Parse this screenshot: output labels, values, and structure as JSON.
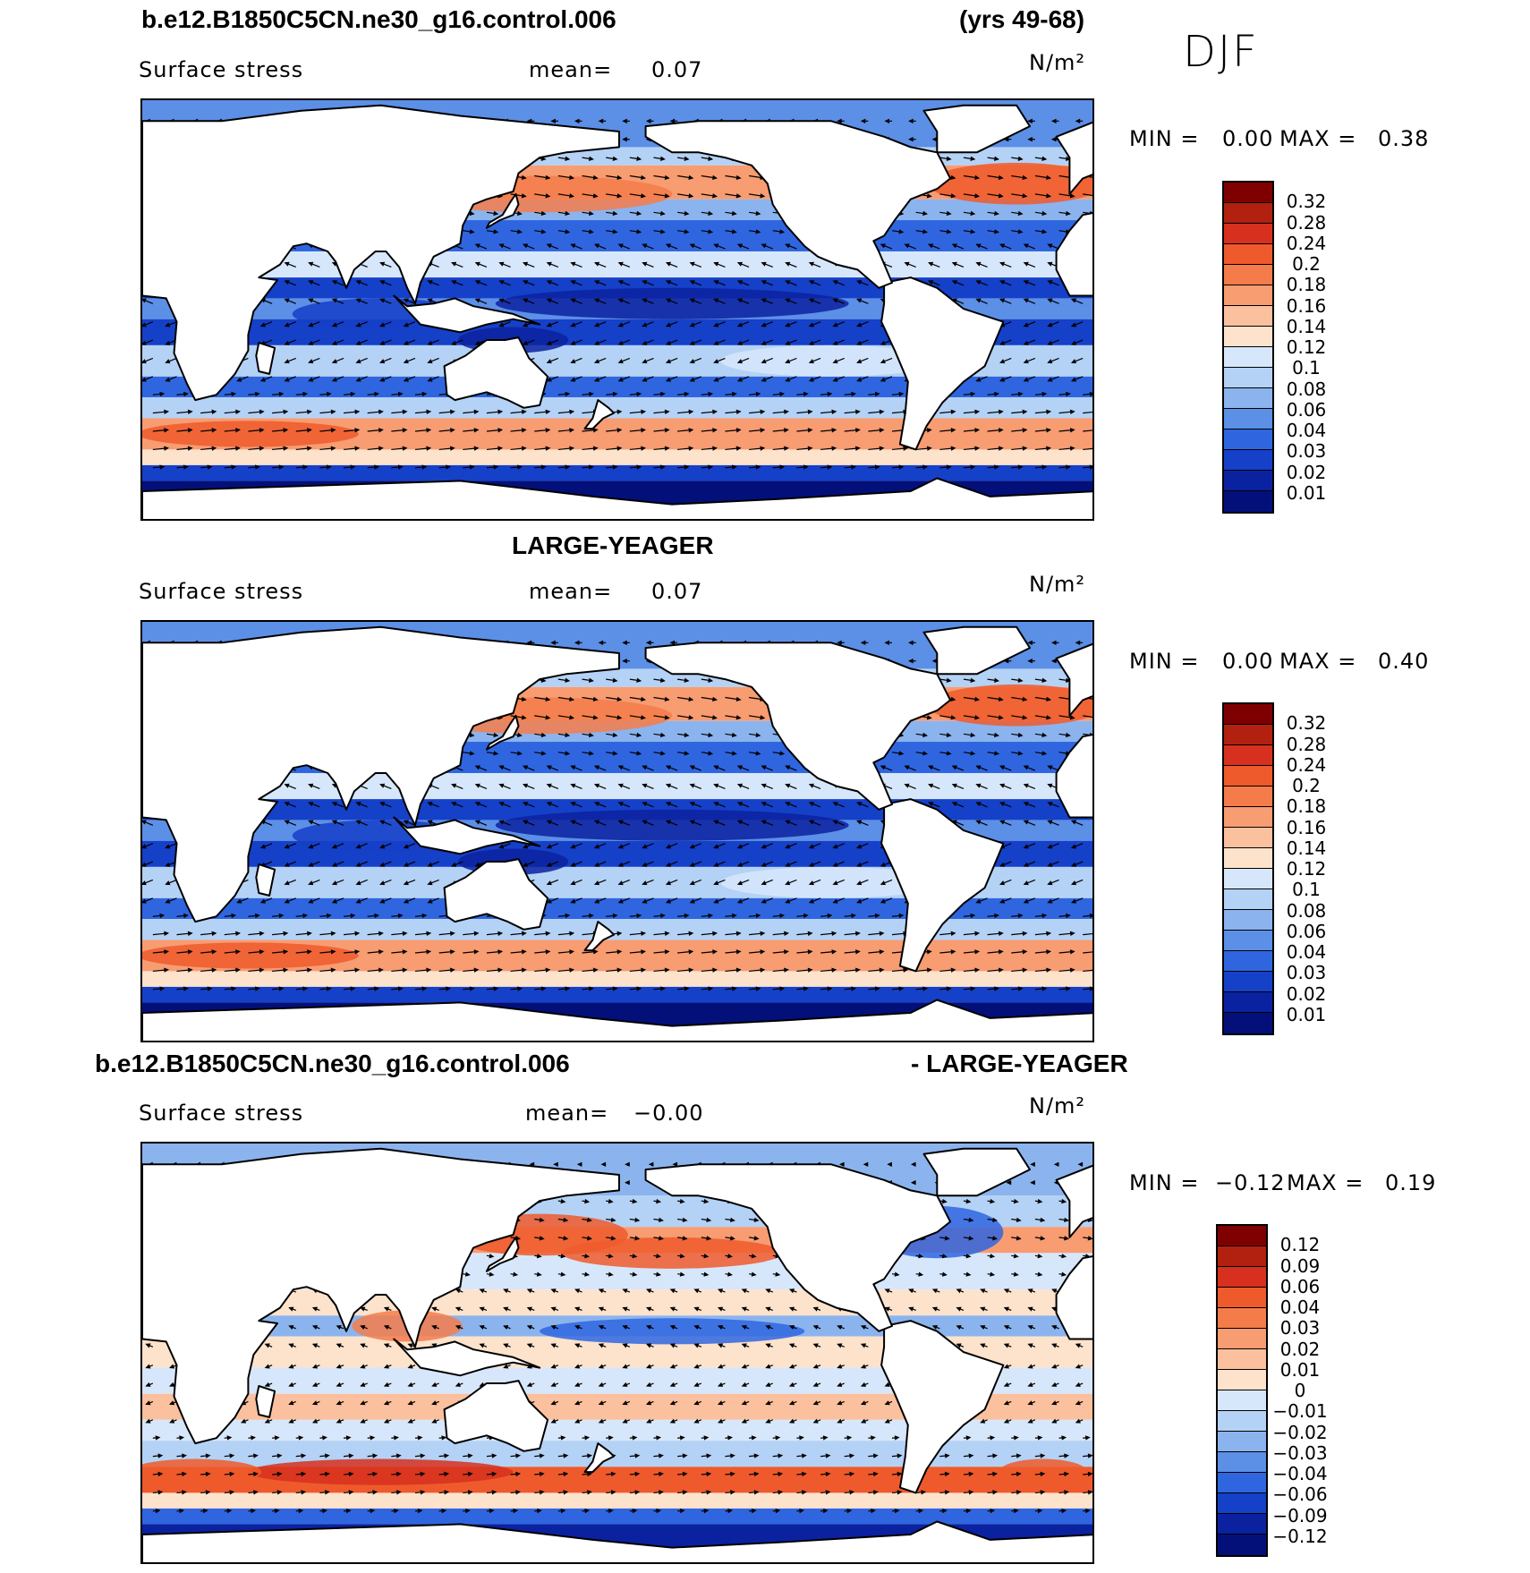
{
  "header": {
    "case_name": "b.e12.B1850C5CN.ne30_g16.control.006",
    "years": "(yrs 49-68)",
    "season": "DJF"
  },
  "panels": [
    {
      "title": "",
      "variable": "Surface stress",
      "mean_label": "mean=",
      "mean_value": "0.07",
      "units": "N/m²",
      "min_label": "MIN =",
      "min_value": "0.00",
      "max_label": "MAX =",
      "max_value": "0.38",
      "colorbar": {
        "labels": [
          "0.32",
          "0.28",
          "0.24",
          "0.2",
          "0.18",
          "0.16",
          "0.14",
          "0.12",
          "0.1",
          "0.08",
          "0.06",
          "0.04",
          "0.03",
          "0.02",
          "0.01"
        ],
        "colors": [
          "#7f0000",
          "#b2200f",
          "#d7301f",
          "#ef5a2c",
          "#f47c4a",
          "#f89c72",
          "#fbc09e",
          "#fde2cc",
          "#d7e7fb",
          "#b4d2f5",
          "#8bb4ee",
          "#5c8fe6",
          "#2f66e0",
          "#1540c8",
          "#0a22a0",
          "#03107a"
        ]
      },
      "scheme": "abs"
    },
    {
      "title": "LARGE-YEAGER",
      "variable": "Surface stress",
      "mean_label": "mean=",
      "mean_value": "0.07",
      "units": "N/m²",
      "min_label": "MIN =",
      "min_value": "0.00",
      "max_label": "MAX =",
      "max_value": "0.40",
      "colorbar": {
        "labels": [
          "0.32",
          "0.28",
          "0.24",
          "0.2",
          "0.18",
          "0.16",
          "0.14",
          "0.12",
          "0.1",
          "0.08",
          "0.06",
          "0.04",
          "0.03",
          "0.02",
          "0.01"
        ],
        "colors": [
          "#7f0000",
          "#b2200f",
          "#d7301f",
          "#ef5a2c",
          "#f47c4a",
          "#f89c72",
          "#fbc09e",
          "#fde2cc",
          "#d7e7fb",
          "#b4d2f5",
          "#8bb4ee",
          "#5c8fe6",
          "#2f66e0",
          "#1540c8",
          "#0a22a0",
          "#03107a"
        ]
      },
      "scheme": "abs"
    },
    {
      "title_left": "b.e12.B1850C5CN.ne30_g16.control.006",
      "title_right": "- LARGE-YEAGER",
      "variable": "Surface stress",
      "mean_label": "mean=",
      "mean_value": "−0.00",
      "units": "N/m²",
      "min_label": "MIN =",
      "min_value": "−0.12",
      "max_label": "MAX =",
      "max_value": "0.19",
      "colorbar": {
        "labels": [
          "0.12",
          "0.09",
          "0.06",
          "0.04",
          "0.03",
          "0.02",
          "0.01",
          "0",
          "−0.01",
          "−0.02",
          "−0.03",
          "−0.04",
          "−0.06",
          "−0.09",
          "−0.12"
        ],
        "colors": [
          "#7f0000",
          "#b2200f",
          "#d7301f",
          "#ef5a2c",
          "#f47c4a",
          "#f89c72",
          "#fbc09e",
          "#fde2cc",
          "#d7e7fb",
          "#b4d2f5",
          "#8bb4ee",
          "#5c8fe6",
          "#2f66e0",
          "#1540c8",
          "#0a22a0",
          "#03107a"
        ]
      },
      "scheme": "diff"
    }
  ]
}
